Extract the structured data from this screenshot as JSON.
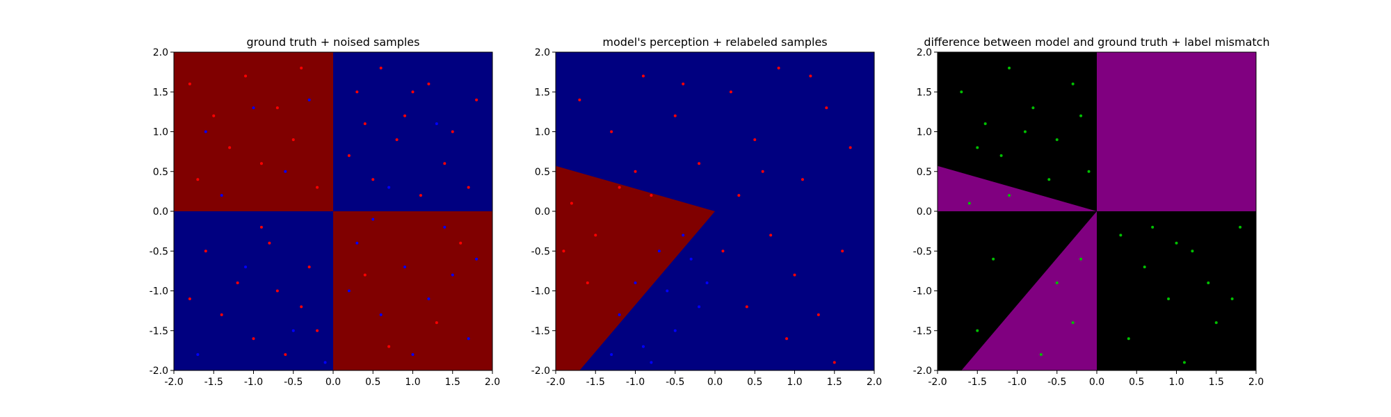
{
  "chart_data": [
    {
      "type": "scatter",
      "title": "ground truth + noised samples",
      "xlabel": "",
      "ylabel": "",
      "xlim": [
        -2.0,
        2.0
      ],
      "ylim": [
        -2.0,
        2.0
      ],
      "xticks": [
        "-2.0",
        "-1.5",
        "-1.0",
        "-0.5",
        "0.0",
        "0.5",
        "1.0",
        "1.5",
        "2.0"
      ],
      "yticks": [
        "-2.0",
        "-1.5",
        "-1.0",
        "-0.5",
        "0.0",
        "0.5",
        "1.0",
        "1.5",
        "2.0"
      ],
      "grid": false,
      "background_regions": [
        {
          "region": "x<0, y>0",
          "color": "#800000"
        },
        {
          "region": "x>0, y>0",
          "color": "#000080"
        },
        {
          "region": "x<0, y<0",
          "color": "#000080"
        },
        {
          "region": "x>0, y<0",
          "color": "#800000"
        }
      ],
      "series": [
        {
          "color": "#ff0000",
          "points": [
            [
              -1.8,
              1.6
            ],
            [
              -1.5,
              1.2
            ],
            [
              -1.1,
              1.7
            ],
            [
              -0.7,
              1.3
            ],
            [
              -0.4,
              1.8
            ],
            [
              -1.3,
              0.8
            ],
            [
              -0.9,
              0.6
            ],
            [
              -0.5,
              0.9
            ],
            [
              -1.7,
              0.4
            ],
            [
              -0.2,
              0.3
            ],
            [
              0.3,
              1.5
            ],
            [
              0.6,
              1.8
            ],
            [
              0.9,
              1.2
            ],
            [
              1.2,
              1.6
            ],
            [
              1.5,
              1.0
            ],
            [
              1.8,
              1.4
            ],
            [
              0.2,
              0.7
            ],
            [
              0.5,
              0.4
            ],
            [
              0.8,
              0.9
            ],
            [
              1.1,
              0.2
            ],
            [
              1.4,
              0.6
            ],
            [
              1.7,
              0.3
            ],
            [
              0.4,
              1.1
            ],
            [
              1.0,
              1.5
            ],
            [
              -1.6,
              -0.5
            ],
            [
              -1.2,
              -0.9
            ],
            [
              -0.8,
              -0.4
            ],
            [
              -0.4,
              -1.2
            ],
            [
              -1.0,
              -1.6
            ],
            [
              -0.6,
              -1.8
            ],
            [
              -0.3,
              -0.7
            ],
            [
              -1.4,
              -1.3
            ],
            [
              -0.7,
              -1.0
            ],
            [
              -0.2,
              -1.5
            ],
            [
              -1.8,
              -1.1
            ],
            [
              -0.9,
              -0.2
            ],
            [
              0.4,
              -0.8
            ],
            [
              1.3,
              -1.4
            ],
            [
              0.7,
              -1.7
            ],
            [
              1.6,
              -0.4
            ]
          ]
        },
        {
          "color": "#0000ff",
          "points": [
            [
              -1.6,
              1.0
            ],
            [
              -1.0,
              1.3
            ],
            [
              -0.6,
              0.5
            ],
            [
              -1.4,
              0.2
            ],
            [
              -0.3,
              1.4
            ],
            [
              0.7,
              0.3
            ],
            [
              1.3,
              1.1
            ],
            [
              0.3,
              -0.4
            ],
            [
              0.9,
              -0.7
            ],
            [
              1.2,
              -1.1
            ],
            [
              1.5,
              -0.8
            ],
            [
              0.6,
              -1.3
            ],
            [
              1.0,
              -1.8
            ],
            [
              1.7,
              -1.6
            ],
            [
              0.2,
              -1.0
            ],
            [
              1.4,
              -0.2
            ],
            [
              0.5,
              -0.1
            ],
            [
              1.8,
              -0.6
            ],
            [
              -1.1,
              -0.7
            ],
            [
              -0.5,
              -1.5
            ],
            [
              -1.7,
              -1.8
            ],
            [
              -0.1,
              -1.9
            ]
          ]
        }
      ]
    },
    {
      "type": "scatter",
      "title": "model's perception + relabeled samples",
      "xlabel": "",
      "ylabel": "",
      "xlim": [
        -2.0,
        2.0
      ],
      "ylim": [
        -2.0,
        2.0
      ],
      "xticks": [
        "-2.0",
        "-1.5",
        "-1.0",
        "-0.5",
        "0.0",
        "0.5",
        "1.0",
        "1.5",
        "2.0"
      ],
      "yticks": [
        "-2.0",
        "-1.5",
        "-1.0",
        "-0.5",
        "0.0",
        "0.5",
        "1.0",
        "1.5",
        "2.0"
      ],
      "grid": false,
      "background_color": "#000080",
      "highlight_region": {
        "polygon": [
          [
            -2.0,
            0.57
          ],
          [
            0.0,
            0.0
          ],
          [
            -1.7,
            -2.0
          ],
          [
            -2.0,
            -2.0
          ]
        ],
        "color": "#800000"
      },
      "series": [
        {
          "color": "#ff0000",
          "points": [
            [
              -1.7,
              1.4
            ],
            [
              -1.3,
              1.0
            ],
            [
              -0.9,
              1.7
            ],
            [
              -0.5,
              1.2
            ],
            [
              -0.2,
              0.6
            ],
            [
              0.2,
              1.5
            ],
            [
              0.5,
              0.9
            ],
            [
              0.8,
              1.8
            ],
            [
              1.1,
              0.4
            ],
            [
              1.4,
              1.3
            ],
            [
              1.7,
              0.8
            ],
            [
              0.3,
              0.2
            ],
            [
              0.7,
              -0.3
            ],
            [
              1.0,
              -0.8
            ],
            [
              1.3,
              -1.3
            ],
            [
              1.6,
              -0.5
            ],
            [
              0.4,
              -1.2
            ],
            [
              0.9,
              -1.6
            ],
            [
              1.5,
              -1.9
            ],
            [
              0.1,
              -0.5
            ],
            [
              -1.8,
              0.1
            ],
            [
              -1.5,
              -0.3
            ],
            [
              -1.2,
              0.3
            ],
            [
              -1.6,
              -0.9
            ],
            [
              -1.9,
              -0.5
            ],
            [
              -0.8,
              0.2
            ],
            [
              -1.0,
              0.5
            ],
            [
              0.6,
              0.5
            ],
            [
              1.2,
              1.7
            ],
            [
              -0.4,
              1.6
            ]
          ]
        },
        {
          "color": "#0000ff",
          "points": [
            [
              -1.2,
              -1.3
            ],
            [
              -0.9,
              -1.7
            ],
            [
              -0.6,
              -1.0
            ],
            [
              -0.3,
              -0.6
            ],
            [
              -0.5,
              -1.5
            ],
            [
              -0.2,
              -1.2
            ],
            [
              -1.0,
              -0.9
            ],
            [
              -0.7,
              -0.5
            ],
            [
              -1.3,
              -1.8
            ],
            [
              -0.1,
              -0.9
            ],
            [
              -0.4,
              -0.3
            ],
            [
              -0.8,
              -1.9
            ]
          ]
        }
      ]
    },
    {
      "type": "scatter",
      "title": "difference between model and ground truth + label mismatch",
      "xlabel": "",
      "ylabel": "",
      "xlim": [
        -2.0,
        2.0
      ],
      "ylim": [
        -2.0,
        2.0
      ],
      "xticks": [
        "-2.0",
        "-1.5",
        "-1.0",
        "-0.5",
        "0.0",
        "0.5",
        "1.0",
        "1.5",
        "2.0"
      ],
      "yticks": [
        "-2.0",
        "-1.5",
        "-1.0",
        "-0.5",
        "0.0",
        "0.5",
        "1.0",
        "1.5",
        "2.0"
      ],
      "grid": false,
      "background_color": "#000000",
      "highlight_regions": [
        {
          "polygon": [
            [
              0.0,
              0.0
            ],
            [
              2.0,
              0.0
            ],
            [
              2.0,
              2.0
            ],
            [
              0.0,
              2.0
            ]
          ],
          "color": "#800080"
        },
        {
          "polygon": [
            [
              -2.0,
              0.57
            ],
            [
              0.0,
              0.0
            ],
            [
              -2.0,
              0.0
            ]
          ],
          "color": "#800080"
        },
        {
          "polygon": [
            [
              0.0,
              0.0
            ],
            [
              0.0,
              -2.0
            ],
            [
              -1.7,
              -2.0
            ]
          ],
          "color": "#800080"
        }
      ],
      "series": [
        {
          "color": "#00c000",
          "points": [
            [
              -1.7,
              1.5
            ],
            [
              -1.4,
              1.1
            ],
            [
              -1.1,
              1.8
            ],
            [
              -0.8,
              1.3
            ],
            [
              -0.5,
              0.9
            ],
            [
              -0.3,
              1.6
            ],
            [
              -0.1,
              0.5
            ],
            [
              -1.2,
              0.7
            ],
            [
              -0.6,
              0.4
            ],
            [
              -0.9,
              1.0
            ],
            [
              -0.2,
              1.2
            ],
            [
              -1.5,
              0.8
            ],
            [
              0.3,
              -0.3
            ],
            [
              0.6,
              -0.7
            ],
            [
              0.9,
              -1.1
            ],
            [
              1.2,
              -0.5
            ],
            [
              1.5,
              -1.4
            ],
            [
              1.8,
              -0.2
            ],
            [
              0.4,
              -1.6
            ],
            [
              1.1,
              -1.9
            ],
            [
              1.4,
              -0.9
            ],
            [
              0.7,
              -0.2
            ],
            [
              1.0,
              -0.4
            ],
            [
              1.7,
              -1.1
            ],
            [
              -1.6,
              0.1
            ],
            [
              -1.1,
              0.2
            ],
            [
              -0.5,
              -0.9
            ],
            [
              -0.3,
              -1.4
            ],
            [
              -0.7,
              -1.8
            ],
            [
              -0.2,
              -0.6
            ],
            [
              -1.5,
              -1.5
            ],
            [
              -1.3,
              -0.6
            ]
          ]
        }
      ]
    }
  ]
}
